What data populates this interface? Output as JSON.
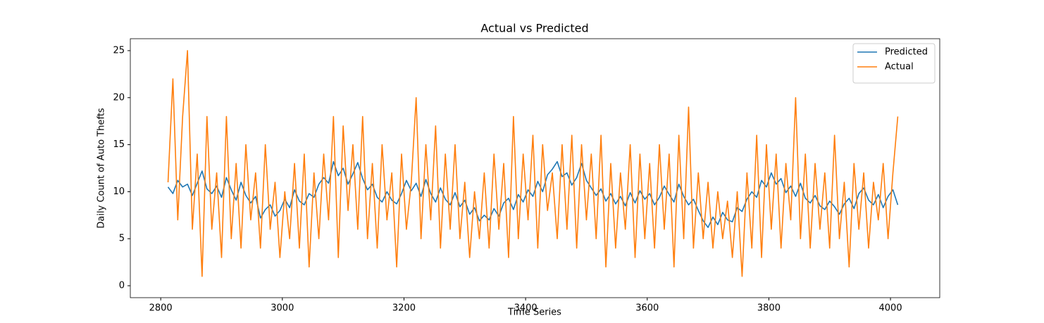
{
  "chart_data": {
    "type": "line",
    "title": "Actual vs Predicted",
    "xlabel": "Time Series",
    "ylabel": "Daily Count of Auto Thefts",
    "xlim": [
      2750,
      4081
    ],
    "ylim": [
      -1.27,
      26.27
    ],
    "xticks": [
      2800,
      3000,
      3200,
      3400,
      3600,
      3800,
      4000
    ],
    "yticks": [
      0,
      5,
      10,
      15,
      20,
      25
    ],
    "legend": "upper right",
    "x": [
      2812,
      2820,
      2828,
      2836,
      2844,
      2852,
      2860,
      2868,
      2876,
      2884,
      2892,
      2900,
      2908,
      2916,
      2924,
      2932,
      2940,
      2948,
      2956,
      2964,
      2972,
      2980,
      2988,
      2996,
      3004,
      3012,
      3020,
      3028,
      3036,
      3044,
      3052,
      3060,
      3068,
      3076,
      3084,
      3092,
      3100,
      3108,
      3116,
      3124,
      3132,
      3140,
      3148,
      3156,
      3164,
      3172,
      3180,
      3188,
      3196,
      3204,
      3212,
      3220,
      3228,
      3236,
      3244,
      3252,
      3260,
      3268,
      3276,
      3284,
      3292,
      3300,
      3308,
      3316,
      3324,
      3332,
      3340,
      3348,
      3356,
      3364,
      3372,
      3380,
      3388,
      3396,
      3404,
      3412,
      3420,
      3428,
      3436,
      3444,
      3452,
      3460,
      3468,
      3476,
      3484,
      3492,
      3500,
      3508,
      3516,
      3524,
      3532,
      3540,
      3548,
      3556,
      3564,
      3572,
      3580,
      3588,
      3596,
      3604,
      3612,
      3620,
      3628,
      3636,
      3644,
      3652,
      3660,
      3668,
      3676,
      3684,
      3692,
      3700,
      3708,
      3716,
      3724,
      3732,
      3740,
      3748,
      3756,
      3764,
      3772,
      3780,
      3788,
      3796,
      3804,
      3812,
      3820,
      3828,
      3836,
      3844,
      3852,
      3860,
      3868,
      3876,
      3884,
      3892,
      3900,
      3908,
      3916,
      3924,
      3932,
      3940,
      3948,
      3956,
      3964,
      3972,
      3980,
      3988,
      3996,
      4004,
      4012
    ],
    "series": [
      {
        "name": "Predicted",
        "color": "#1f77b4",
        "values": [
          10.5,
          9.8,
          11.2,
          10.5,
          10.8,
          9.6,
          10.9,
          12.2,
          10.3,
          9.8,
          10.6,
          9.4,
          11.5,
          10.2,
          9.1,
          11.0,
          9.6,
          8.8,
          9.5,
          7.2,
          8.1,
          8.6,
          7.4,
          8.0,
          9.2,
          8.3,
          10.2,
          9.0,
          8.6,
          9.8,
          9.4,
          10.8,
          11.5,
          10.9,
          13.2,
          11.7,
          12.5,
          10.8,
          11.9,
          13.1,
          11.4,
          10.2,
          10.8,
          9.4,
          8.9,
          10.0,
          9.1,
          8.7,
          9.8,
          11.2,
          10.1,
          10.9,
          9.5,
          11.3,
          9.8,
          8.9,
          10.4,
          9.2,
          8.6,
          9.9,
          8.4,
          9.1,
          7.6,
          8.3,
          6.9,
          7.5,
          7.0,
          8.2,
          7.4,
          8.8,
          9.3,
          8.1,
          9.7,
          8.9,
          10.2,
          9.5,
          11.1,
          10.0,
          11.8,
          12.4,
          13.2,
          11.6,
          12.0,
          10.7,
          11.5,
          13.0,
          11.2,
          10.4,
          9.6,
          10.3,
          9.0,
          9.8,
          8.7,
          9.5,
          8.5,
          9.9,
          8.8,
          10.1,
          9.2,
          9.8,
          8.6,
          9.4,
          10.6,
          9.7,
          8.9,
          10.8,
          9.5,
          8.6,
          9.2,
          8.0,
          6.9,
          6.2,
          7.3,
          6.5,
          7.8,
          7.0,
          6.8,
          8.3,
          7.9,
          9.2,
          10.0,
          9.4,
          11.2,
          10.5,
          12.0,
          10.8,
          11.4,
          9.9,
          10.6,
          9.5,
          10.9,
          9.3,
          8.8,
          9.6,
          8.5,
          8.1,
          9.0,
          8.4,
          7.6,
          8.7,
          9.3,
          8.2,
          9.8,
          10.4,
          9.1,
          8.6,
          9.7,
          8.3,
          9.5,
          10.2,
          8.6
        ]
      },
      {
        "name": "Actual",
        "color": "#ff7f0e",
        "values": [
          11,
          22,
          7,
          18,
          25,
          6,
          14,
          1,
          18,
          6,
          12,
          3,
          18,
          5,
          13,
          4,
          15,
          7,
          12,
          4,
          15,
          6,
          11,
          3,
          10,
          5,
          13,
          4,
          14,
          2,
          12,
          5,
          14,
          7,
          18,
          3,
          17,
          8,
          15,
          6,
          18,
          5,
          13,
          4,
          15,
          7,
          12,
          2,
          14,
          6,
          11,
          20,
          5,
          15,
          7,
          17,
          4,
          14,
          6,
          15,
          5,
          11,
          3,
          10,
          5,
          12,
          4,
          14,
          6,
          13,
          3,
          18,
          5,
          14,
          7,
          16,
          4,
          15,
          8,
          12,
          5,
          15,
          6,
          16,
          4,
          15,
          7,
          14,
          5,
          16,
          2,
          13,
          4,
          12,
          6,
          15,
          3,
          14,
          5,
          13,
          4,
          15,
          6,
          14,
          2,
          16,
          5,
          19,
          4,
          12,
          5,
          11,
          4,
          10,
          5,
          9,
          3,
          10,
          1,
          12,
          4,
          16,
          3,
          15,
          6,
          14,
          4,
          13,
          7,
          20,
          5,
          14,
          4,
          13,
          6,
          12,
          4,
          16,
          5,
          11,
          2,
          13,
          6,
          12,
          4,
          11,
          7,
          13,
          5,
          12,
          18
        ]
      }
    ]
  }
}
